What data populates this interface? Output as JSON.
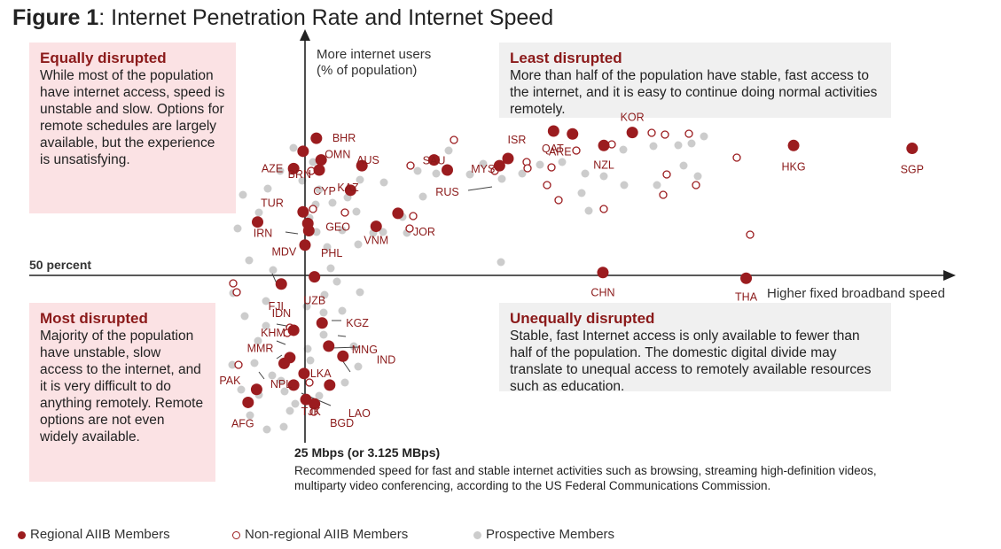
{
  "figure": {
    "number": "Figure 1",
    "title": ": Internet Penetration Rate and Internet Speed"
  },
  "quadrants": {
    "top_left": {
      "title": "Equally disrupted",
      "body": "While most of the population have internet access, speed is unstable and slow. Options for remote schedules are largely available, but the experience is unsatisfying."
    },
    "top_right": {
      "title": "Least disrupted",
      "body": "More than half of the population have stable, fast access to the internet, and it is easy to continue doing normal activities remotely."
    },
    "bottom_left": {
      "title": "Most disrupted",
      "body": "Majority of the population have unstable, slow access to the internet, and it is very difficult to do anything remotely. Remote options are not even widely available."
    },
    "bottom_right": {
      "title": "Unequally disrupted",
      "body": "Stable, fast Internet access is only available to fewer than half of the population. The domestic digital divide may translate to unequal access to remotely available resources such as education."
    }
  },
  "axes": {
    "ylabel_line1": "More internet users",
    "ylabel_line2": "(% of population)",
    "xlabel": "Higher fixed broadband speed",
    "h_threshold_label": "50 percent",
    "v_threshold_label": "25 Mbps (or 3.125 MBps)",
    "v_threshold_note": "Recommended speed for fast and stable internet activities such as browsing, streaming high-definition videos, multiparty video conferencing, according to the US Federal Communications Commission."
  },
  "legend": {
    "regional": "Regional AIIB Members",
    "nonregional": "Non-regional AIIB Members",
    "prospective": "Prospective Members"
  },
  "colors": {
    "regional": "#9b1c1f",
    "nonregional": "#9b1c1f",
    "prospective": "#cccccc",
    "label": "#8b1a1a",
    "pink_box": "#fbe2e4",
    "grey_box": "#f0f0f0"
  },
  "chart_data": {
    "type": "scatter",
    "x_axis": "fixed broadband speed (relative to 25 Mbps threshold)",
    "y_axis": "internet users (% of population, relative to 50 percent threshold)",
    "thresholds": {
      "x": "25 Mbps",
      "y": "50 percent"
    },
    "labeled_points": [
      {
        "label": "BHR",
        "x": 0.12,
        "y": 0.95,
        "group": "regional"
      },
      {
        "label": "BRN",
        "x": -0.02,
        "y": 0.86,
        "group": "regional"
      },
      {
        "label": "OMN",
        "x": 0.17,
        "y": 0.8,
        "group": "regional"
      },
      {
        "label": "AZE",
        "x": -0.12,
        "y": 0.74,
        "group": "regional"
      },
      {
        "label": "CYP",
        "x": 0.15,
        "y": 0.73,
        "group": "regional"
      },
      {
        "label": "AUS",
        "x": 0.6,
        "y": 0.76,
        "group": "regional"
      },
      {
        "label": "KAZ",
        "x": 0.48,
        "y": 0.59,
        "group": "regional"
      },
      {
        "label": "TUR",
        "x": -0.02,
        "y": 0.44,
        "group": "regional"
      },
      {
        "label": "GEO",
        "x": 0.03,
        "y": 0.36,
        "group": "regional"
      },
      {
        "label": "IRN",
        "x": -0.5,
        "y": 0.37,
        "group": "regional"
      },
      {
        "label": "MDV",
        "x": 0.04,
        "y": 0.31,
        "group": "regional"
      },
      {
        "label": "PHL",
        "x": 0.0,
        "y": 0.21,
        "group": "regional"
      },
      {
        "label": "VNM",
        "x": 0.75,
        "y": 0.34,
        "group": "regional"
      },
      {
        "label": "JOR",
        "x": 0.98,
        "y": 0.43,
        "group": "regional"
      },
      {
        "label": "SAU",
        "x": 1.36,
        "y": 0.8,
        "group": "regional"
      },
      {
        "label": "RUS",
        "x": 1.5,
        "y": 0.73,
        "group": "regional"
      },
      {
        "label": "MYS",
        "x": 2.05,
        "y": 0.76,
        "group": "regional"
      },
      {
        "label": "ISR",
        "x": 2.14,
        "y": 0.81,
        "group": "regional"
      },
      {
        "label": "QAT",
        "x": 2.62,
        "y": 1.0,
        "group": "regional"
      },
      {
        "label": "ARE",
        "x": 2.82,
        "y": 0.98,
        "group": "regional"
      },
      {
        "label": "NZL",
        "x": 3.15,
        "y": 0.9,
        "group": "regional"
      },
      {
        "label": "KOR",
        "x": 3.45,
        "y": 0.99,
        "group": "regional"
      },
      {
        "label": "HKG",
        "x": 5.15,
        "y": 0.9,
        "group": "regional"
      },
      {
        "label": "SGP",
        "x": 6.4,
        "y": 0.88,
        "group": "regional"
      },
      {
        "label": "CHN",
        "x": 3.14,
        "y": 0.02,
        "group": "regional"
      },
      {
        "label": "THA",
        "x": 4.65,
        "y": -0.02,
        "group": "regional"
      },
      {
        "label": "UZB",
        "x": 0.1,
        "y": -0.01,
        "group": "regional"
      },
      {
        "label": "FJI",
        "x": -0.25,
        "y": -0.06,
        "group": "regional"
      },
      {
        "label": "KGZ",
        "x": 0.18,
        "y": -0.33,
        "group": "regional"
      },
      {
        "label": "IDN",
        "x": -0.12,
        "y": -0.38,
        "group": "regional"
      },
      {
        "label": "MNG",
        "x": 0.25,
        "y": -0.49,
        "group": "regional"
      },
      {
        "label": "KHM",
        "x": -0.16,
        "y": -0.57,
        "group": "regional"
      },
      {
        "label": "IND",
        "x": 0.4,
        "y": -0.56,
        "group": "regional"
      },
      {
        "label": "MMR",
        "x": -0.22,
        "y": -0.61,
        "group": "regional"
      },
      {
        "label": "LKA",
        "x": -0.01,
        "y": -0.68,
        "group": "regional"
      },
      {
        "label": "NPL",
        "x": -0.12,
        "y": -0.76,
        "group": "regional"
      },
      {
        "label": "PAK",
        "x": -0.51,
        "y": -0.79,
        "group": "regional"
      },
      {
        "label": "LAO",
        "x": 0.26,
        "y": -0.76,
        "group": "regional"
      },
      {
        "label": "TJK",
        "x": 0.1,
        "y": -0.89,
        "group": "regional"
      },
      {
        "label": "BGD",
        "x": 0.01,
        "y": -0.86,
        "group": "regional"
      },
      {
        "label": "AFG",
        "x": -0.6,
        "y": -0.88,
        "group": "regional"
      }
    ]
  }
}
